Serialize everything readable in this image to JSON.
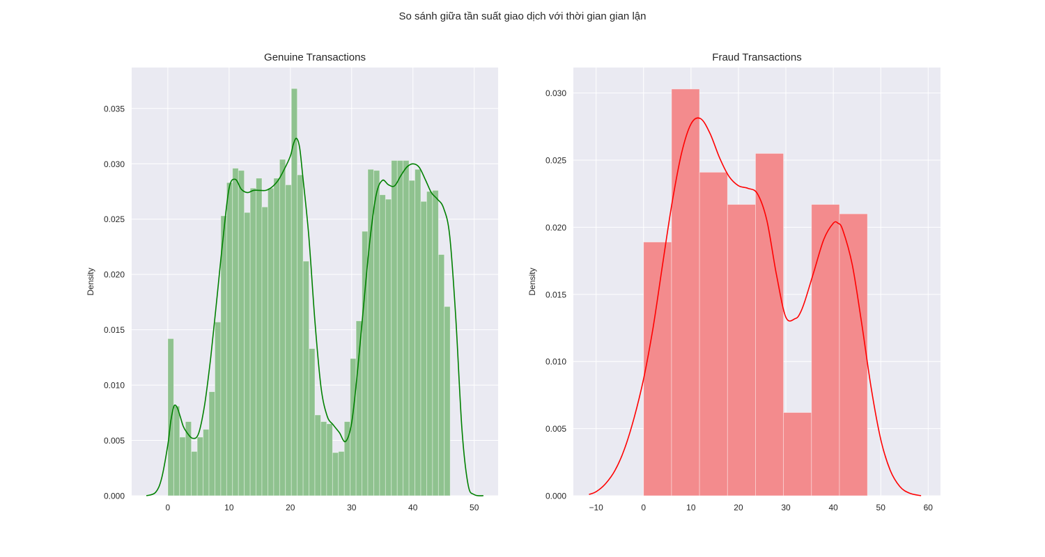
{
  "suptitle": "So sánh giữa tần suất giao dịch với thời gian gian lận",
  "colors": {
    "background": "#eaeaf2",
    "grid": "#ffffff",
    "genuine_bar": "#8fc28f",
    "genuine_line": "#008000",
    "fraud_bar": "#f38b8d",
    "fraud_line": "#ff0000"
  },
  "chart_data": [
    {
      "type": "bar",
      "title": "Genuine Transactions",
      "xlabel": "",
      "ylabel": "Density",
      "xlim": [
        -5.9,
        53.9
      ],
      "ylim": [
        0,
        0.0387
      ],
      "xticks": [
        0,
        10,
        20,
        30,
        40,
        50
      ],
      "xtick_labels": [
        "0",
        "10",
        "20",
        "30",
        "40",
        "50"
      ],
      "yticks": [
        0,
        0.005,
        0.01,
        0.015,
        0.02,
        0.025,
        0.03,
        0.035
      ],
      "ytick_labels": [
        "0.000",
        "0.005",
        "0.010",
        "0.015",
        "0.020",
        "0.025",
        "0.030",
        "0.035"
      ],
      "grid": true,
      "bins_start": 0,
      "bin_width": 0.96,
      "values": [
        0.0142,
        0.0081,
        0.0053,
        0.0067,
        0.004,
        0.0053,
        0.006,
        0.0094,
        0.0157,
        0.0253,
        0.0283,
        0.0296,
        0.0294,
        0.0256,
        0.0278,
        0.0287,
        0.0261,
        0.0278,
        0.0287,
        0.0304,
        0.0281,
        0.0368,
        0.029,
        0.0212,
        0.0133,
        0.0073,
        0.0067,
        0.0065,
        0.0039,
        0.004,
        0.0067,
        0.0124,
        0.0158,
        0.0239,
        0.0295,
        0.0294,
        0.0272,
        0.0268,
        0.0303,
        0.0303,
        0.0303,
        0.0285,
        0.0295,
        0.0266,
        0.0275,
        0.0276,
        0.0218,
        0.0171
      ],
      "kde": {
        "x": [
          -3.5,
          -2,
          -1,
          0,
          0.5,
          1,
          1.5,
          2,
          2.5,
          3,
          4,
          5,
          6,
          7,
          8,
          9,
          10,
          11,
          12,
          13,
          14,
          15,
          16,
          17,
          18,
          19,
          20,
          20.5,
          21,
          21.5,
          22,
          23,
          24,
          25,
          26,
          27,
          28,
          29,
          30,
          31,
          32,
          33,
          34,
          35,
          36,
          37,
          38,
          39,
          40,
          41,
          42,
          43,
          44,
          45,
          46,
          47,
          48,
          49,
          50,
          51.5
        ],
        "y": [
          0.0,
          0.0003,
          0.0016,
          0.0046,
          0.0068,
          0.0081,
          0.008,
          0.0072,
          0.0063,
          0.0058,
          0.0052,
          0.0056,
          0.0082,
          0.0125,
          0.0178,
          0.0232,
          0.0278,
          0.0286,
          0.0277,
          0.0274,
          0.0276,
          0.0276,
          0.0276,
          0.0279,
          0.0285,
          0.0295,
          0.0307,
          0.0318,
          0.0323,
          0.0315,
          0.029,
          0.0235,
          0.0158,
          0.0098,
          0.0072,
          0.0064,
          0.0057,
          0.0049,
          0.0066,
          0.0115,
          0.0175,
          0.0232,
          0.0272,
          0.0285,
          0.0281,
          0.028,
          0.0289,
          0.0297,
          0.03,
          0.0297,
          0.0286,
          0.0274,
          0.0268,
          0.026,
          0.0235,
          0.016,
          0.006,
          0.001,
          0.0001,
          0.0
        ]
      }
    },
    {
      "type": "bar",
      "title": "Fraud Transactions",
      "xlabel": "",
      "ylabel": "Density",
      "xlim": [
        -14.8,
        62.6
      ],
      "ylim": [
        0,
        0.0319
      ],
      "xticks": [
        -10,
        0,
        10,
        20,
        30,
        40,
        50,
        60
      ],
      "xtick_labels": [
        "−10",
        "0",
        "10",
        "20",
        "30",
        "40",
        "50",
        "60"
      ],
      "yticks": [
        0,
        0.005,
        0.01,
        0.015,
        0.02,
        0.025,
        0.03
      ],
      "ytick_labels": [
        "0.000",
        "0.005",
        "0.010",
        "0.015",
        "0.020",
        "0.025",
        "0.030"
      ],
      "grid": true,
      "bins_start": 0,
      "bin_width": 5.9,
      "values": [
        0.0189,
        0.0303,
        0.0241,
        0.0217,
        0.0255,
        0.0062,
        0.0217,
        0.021
      ],
      "kde": {
        "x": [
          -11.5,
          -10,
          -8,
          -6,
          -4,
          -2,
          0,
          2,
          4,
          6,
          8,
          10,
          12,
          14,
          16,
          18,
          20,
          22,
          24,
          26,
          28,
          30,
          32,
          33,
          34,
          36,
          38,
          40,
          41,
          42,
          44,
          46,
          48,
          50,
          52,
          54,
          56,
          58.5
        ],
        "y": [
          0.0001,
          0.0003,
          0.0009,
          0.0019,
          0.0035,
          0.0058,
          0.0087,
          0.0125,
          0.0172,
          0.0218,
          0.0255,
          0.0277,
          0.0281,
          0.027,
          0.0252,
          0.0238,
          0.0231,
          0.0229,
          0.0225,
          0.0205,
          0.0165,
          0.0133,
          0.0132,
          0.0136,
          0.0145,
          0.0168,
          0.0191,
          0.0203,
          0.0203,
          0.0198,
          0.0172,
          0.0128,
          0.008,
          0.0042,
          0.0019,
          0.0007,
          0.0002,
          0.0
        ]
      }
    }
  ]
}
